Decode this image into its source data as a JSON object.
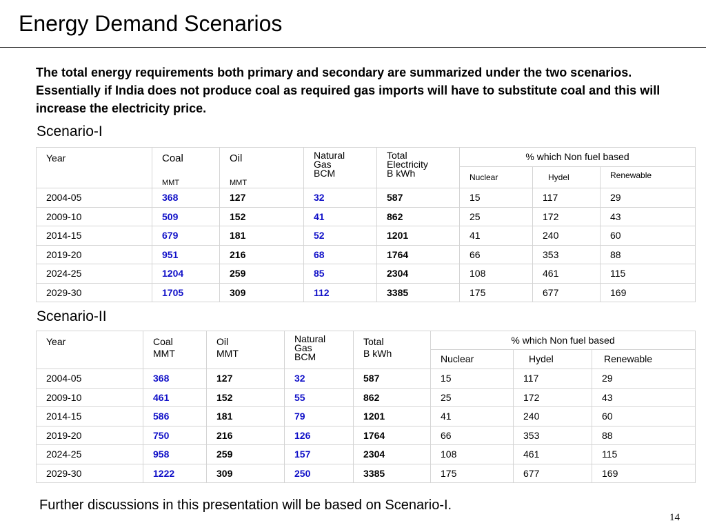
{
  "title": "Energy Demand Scenarios",
  "intro": "The total energy requirements both primary and secondary are summarized under the two scenarios.  Essentially if India does not produce coal as required gas imports will have to substitute coal and this will increase the electricity price.",
  "scenario1": {
    "label": "Scenario-I",
    "headers": {
      "year": "Year",
      "coal": "Coal",
      "coal_unit": "MMT",
      "oil": "Oil",
      "oil_unit": "MMT",
      "gas_l1": "Natural",
      "gas_l2": "Gas",
      "gas_l3": "BCM",
      "elec_l1": "Total",
      "elec_l2": "Electricity",
      "elec_l3": "B kWh",
      "nonfuel": "% which Non fuel based",
      "nuclear": "Nuclear",
      "hydel": "Hydel",
      "renewable": "Renewable"
    },
    "rows": [
      {
        "year": "2004-05",
        "coal": "368",
        "oil": "127",
        "gas": "32",
        "elec": "587",
        "nuclear": "15",
        "hydel": "117",
        "renewable": "29"
      },
      {
        "year": "2009-10",
        "coal": "509",
        "oil": "152",
        "gas": "41",
        "elec": "862",
        "nuclear": "25",
        "hydel": "172",
        "renewable": "43"
      },
      {
        "year": "2014-15",
        "coal": "679",
        "oil": "181",
        "gas": "52",
        "elec": "1201",
        "nuclear": "41",
        "hydel": "240",
        "renewable": "60"
      },
      {
        "year": "2019-20",
        "coal": "951",
        "oil": "216",
        "gas": "68",
        "elec": "1764",
        "nuclear": "66",
        "hydel": "353",
        "renewable": "88"
      },
      {
        "year": "2024-25",
        "coal": "1204",
        "oil": "259",
        "gas": "85",
        "elec": "2304",
        "nuclear": "108",
        "hydel": "461",
        "renewable": "115"
      },
      {
        "year": "2029-30",
        "coal": "1705",
        "oil": "309",
        "gas": "112",
        "elec": "3385",
        "nuclear": "175",
        "hydel": "677",
        "renewable": "169"
      }
    ]
  },
  "scenario2": {
    "label": "Scenario-II",
    "headers": {
      "year": "Year",
      "coal_l1": "Coal",
      "coal_l2": "MMT",
      "oil_l1": "Oil",
      "oil_l2": "MMT",
      "gas_l1": "Natural",
      "gas_l2": "Gas",
      "gas_l3": "BCM",
      "elec_l1": "Total",
      "elec_l2": "B kWh",
      "nonfuel": "% which Non fuel based",
      "nuclear": "Nuclear",
      "hydel": "Hydel",
      "renewable": "Renewable"
    },
    "rows": [
      {
        "year": "2004-05",
        "coal": "368",
        "oil": "127",
        "gas": "32",
        "elec": "587",
        "nuclear": "15",
        "hydel": "117",
        "renewable": "29"
      },
      {
        "year": "2009-10",
        "coal": "461",
        "oil": "152",
        "gas": "55",
        "elec": "862",
        "nuclear": "25",
        "hydel": "172",
        "renewable": "43"
      },
      {
        "year": "2014-15",
        "coal": "586",
        "oil": "181",
        "gas": "79",
        "elec": "1201",
        "nuclear": "41",
        "hydel": "240",
        "renewable": "60"
      },
      {
        "year": "2019-20",
        "coal": "750",
        "oil": "216",
        "gas": "126",
        "elec": "1764",
        "nuclear": "66",
        "hydel": "353",
        "renewable": "88"
      },
      {
        "year": "2024-25",
        "coal": "958",
        "oil": "259",
        "gas": "157",
        "elec": "2304",
        "nuclear": "108",
        "hydel": "461",
        "renewable": "115"
      },
      {
        "year": "2029-30",
        "coal": "1222",
        "oil": "309",
        "gas": "250",
        "elec": "3385",
        "nuclear": "175",
        "hydel": "677",
        "renewable": "169"
      }
    ]
  },
  "footer": "Further discussions in this presentation will be based on Scenario-I.",
  "page_number": "14"
}
